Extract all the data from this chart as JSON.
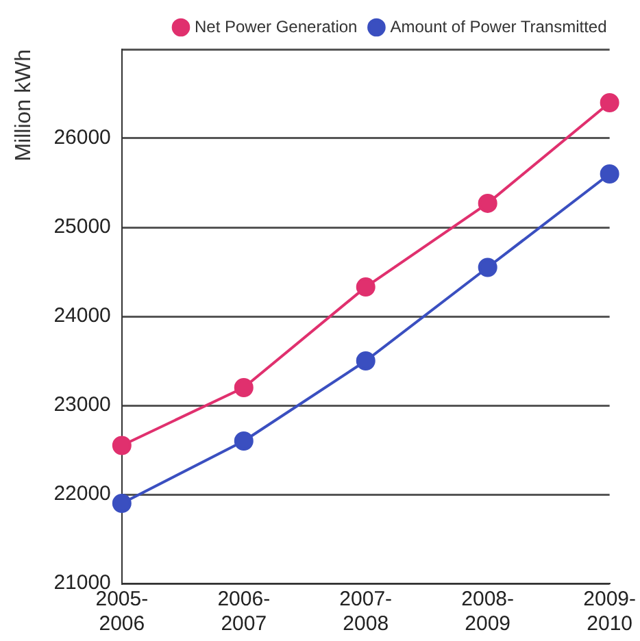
{
  "chart_data": {
    "type": "line",
    "ylabel": "Million kWh",
    "categories": [
      "2005-\n2006",
      "2006-\n2007",
      "2007-\n2008",
      "2008-\n2009",
      "2009-\n2010"
    ],
    "series": [
      {
        "name": "Net Power Generation",
        "color": "#e0306e",
        "values": [
          22550,
          23200,
          24330,
          25270,
          26400
        ]
      },
      {
        "name": "Amount of Power Transmitted",
        "color": "#3a4fc0",
        "values": [
          21900,
          22600,
          23500,
          24550,
          25600
        ]
      }
    ],
    "ylim": [
      21000,
      27000
    ],
    "yticks": [
      21000,
      22000,
      23000,
      24000,
      25000,
      26000,
      {
        "value": 27000,
        "label": null
      }
    ],
    "grid": "y",
    "legend": "top right",
    "marker": "circle",
    "line_style": "solid"
  }
}
